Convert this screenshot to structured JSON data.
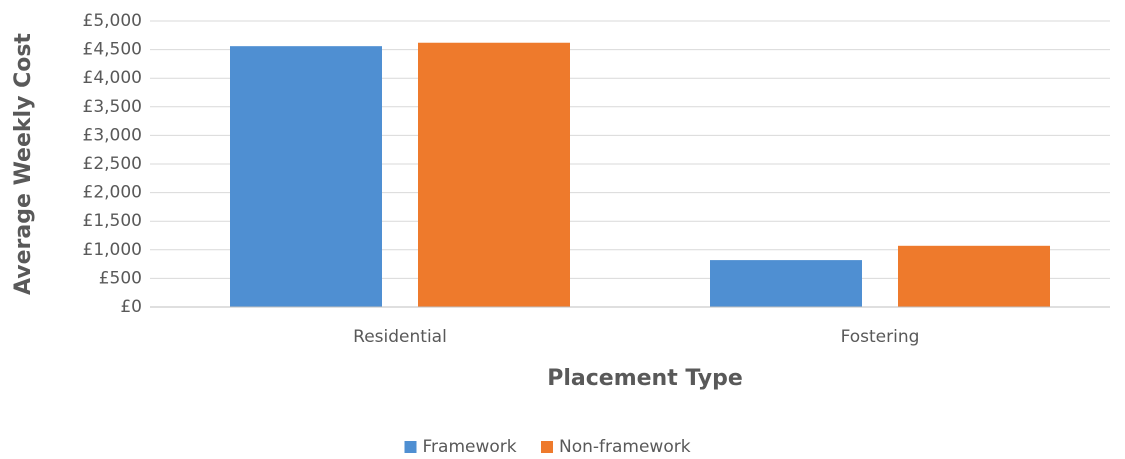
{
  "chart_data": {
    "type": "bar",
    "x_label": "Placement Type",
    "y_label": "Average Weekly Cost",
    "categories": [
      "Residential",
      "Fostering"
    ],
    "series": [
      {
        "name": "Framework",
        "color": "#4f8fd2",
        "values": [
          4560,
          820
        ]
      },
      {
        "name": "Non-framework",
        "color": "#ee7a2c",
        "values": [
          4620,
          1070
        ]
      }
    ],
    "ylim": [
      0,
      5000
    ],
    "yticks": [
      {
        "value": 0,
        "label": "£0"
      },
      {
        "value": 500,
        "label": "£500"
      },
      {
        "value": 1000,
        "label": "£1,000"
      },
      {
        "value": 1500,
        "label": "£1,500"
      },
      {
        "value": 2000,
        "label": "£2,000"
      },
      {
        "value": 2500,
        "label": "£2,500"
      },
      {
        "value": 3000,
        "label": "£3,000"
      },
      {
        "value": 3500,
        "label": "£3,500"
      },
      {
        "value": 4000,
        "label": "£4,000"
      },
      {
        "value": 4500,
        "label": "£4,500"
      },
      {
        "value": 5000,
        "label": "£5,000"
      }
    ],
    "grid": true,
    "legend": "bottom"
  }
}
